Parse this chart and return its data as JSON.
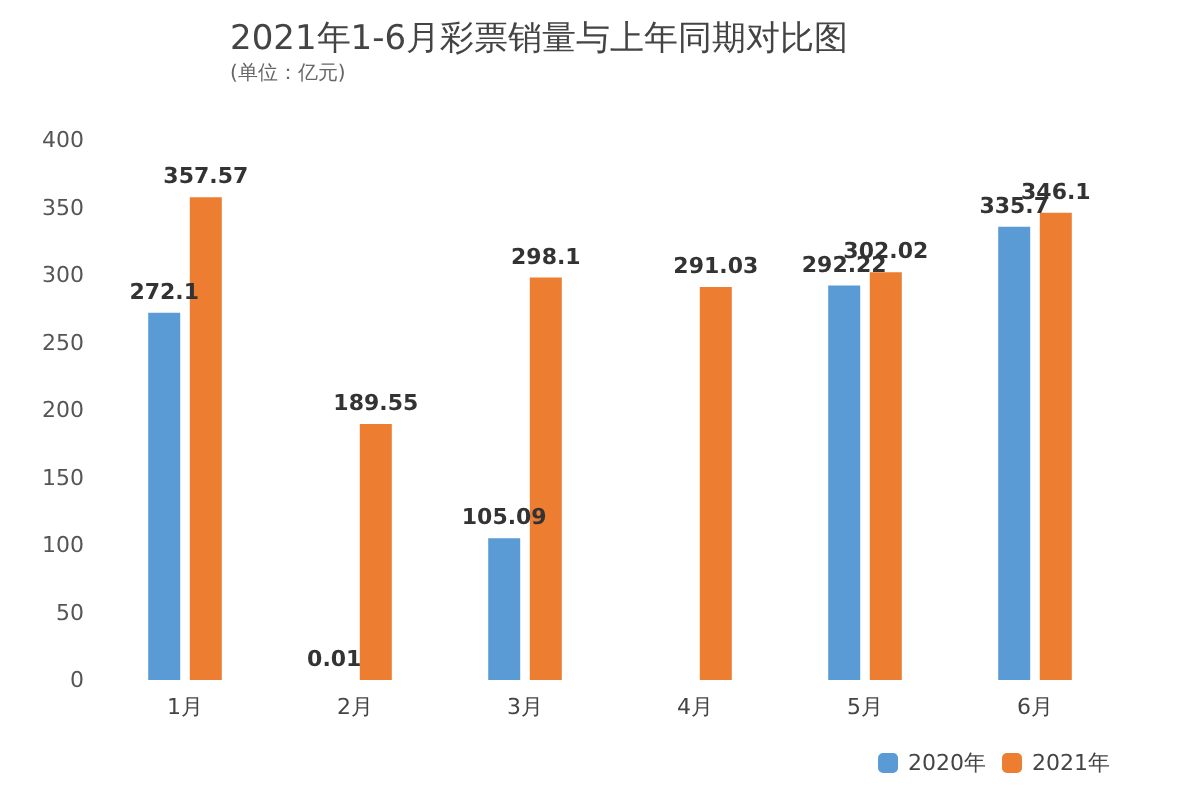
{
  "chart_data": {
    "type": "bar",
    "title": "2021年1-6月彩票销量与上年同期对比图",
    "subtitle": "(单位：亿元)",
    "categories": [
      "1月",
      "2月",
      "3月",
      "4月",
      "5月",
      "6月"
    ],
    "series": [
      {
        "name": "2020年",
        "color": "#5b9bd5",
        "values": [
          272.1,
          0.01,
          105.09,
          null,
          292.22,
          335.7
        ]
      },
      {
        "name": "2021年",
        "color": "#ed7d31",
        "values": [
          357.57,
          189.55,
          298.1,
          291.03,
          302.02,
          346.1
        ]
      }
    ],
    "ylim": [
      0,
      400
    ],
    "yticks": [
      0,
      50,
      100,
      150,
      200,
      250,
      300,
      350,
      400
    ],
    "grid": false,
    "legend": "bottom right",
    "data_labels": true
  }
}
